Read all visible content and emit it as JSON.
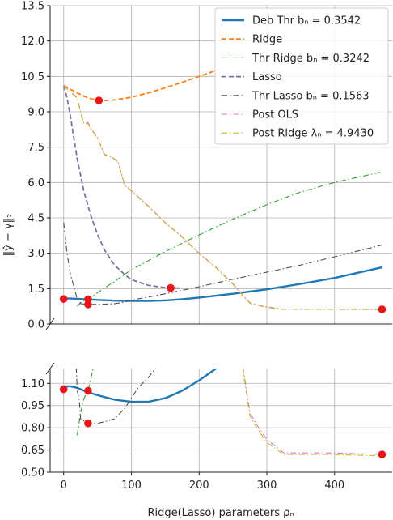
{
  "chart_data": {
    "type": "line",
    "xlabel": "Ridge(Lasso) parameters ρₙ",
    "ylabel": "‖ŷ − γ‖₂",
    "grid": true,
    "legend_position": "top-right",
    "xlim": [
      -20,
      485
    ],
    "x_ticks": [
      "0",
      "100",
      "200",
      "300",
      "400"
    ],
    "panels": [
      {
        "name": "top",
        "ylim": [
          0,
          13.5
        ],
        "y_ticks": [
          "0.0",
          "1.5",
          "3.0",
          "4.5",
          "6.0",
          "7.5",
          "9.0",
          "10.5",
          "12.0",
          "13.5"
        ]
      },
      {
        "name": "bottom",
        "ylim": [
          0.5,
          1.2
        ],
        "y_ticks": [
          "0.50",
          "0.65",
          "0.80",
          "0.95",
          "1.10"
        ]
      }
    ],
    "series": [
      {
        "name": "Deb Thr bₙ = 0.3542",
        "style": "solid",
        "color": "#1f77b4",
        "width": 2.4,
        "x": [
          0,
          10,
          20,
          30,
          36,
          50,
          75,
          100,
          125,
          150,
          175,
          200,
          250,
          300,
          350,
          400,
          470
        ],
        "y": [
          1.08,
          1.08,
          1.07,
          1.05,
          1.04,
          1.02,
          0.99,
          0.975,
          0.975,
          1.0,
          1.05,
          1.12,
          1.28,
          1.47,
          1.7,
          1.95,
          2.4
        ]
      },
      {
        "name": "Ridge",
        "style": "dashed",
        "color": "#ff7f0e",
        "width": 1.8,
        "x": [
          0,
          10,
          20,
          30,
          40,
          52,
          60,
          75,
          100,
          125,
          150,
          175,
          200,
          230
        ],
        "y": [
          10.12,
          9.95,
          9.8,
          9.66,
          9.55,
          9.48,
          9.47,
          9.5,
          9.62,
          9.8,
          10.02,
          10.25,
          10.5,
          10.8
        ]
      },
      {
        "name": "Thr Ridge bₙ = 0.3242",
        "style": "dashdot",
        "color": "#2ca02c",
        "width": 1.1,
        "x": [
          20,
          25,
          30,
          36,
          50,
          75,
          100,
          150,
          200,
          250,
          300,
          350,
          400,
          470
        ],
        "y": [
          0.75,
          0.9,
          1.0,
          1.05,
          1.33,
          1.8,
          2.3,
          3.07,
          3.78,
          4.45,
          5.06,
          5.6,
          6.0,
          6.45
        ]
      },
      {
        "name": "Lasso",
        "style": "dashed",
        "color": "#7f70a0",
        "width": 1.8,
        "x": [
          0,
          5,
          10,
          20,
          30,
          40,
          50,
          60,
          75,
          90,
          100,
          125,
          150,
          158,
          175
        ],
        "y": [
          10.1,
          9.6,
          8.8,
          7.0,
          5.6,
          4.6,
          3.8,
          3.15,
          2.5,
          2.1,
          1.88,
          1.64,
          1.54,
          1.53,
          1.52
        ]
      },
      {
        "name": "Thr Lasso bₙ = 0.1563",
        "style": "dashdot",
        "color": "#5b4a50",
        "width": 1.1,
        "x": [
          0,
          5,
          10,
          15,
          20,
          23,
          25,
          36,
          50,
          60,
          75,
          90,
          100,
          110,
          125,
          150,
          200,
          250,
          300,
          350,
          400,
          470
        ],
        "y": [
          4.3,
          3.0,
          2.1,
          1.6,
          1.05,
          0.99,
          0.86,
          0.83,
          0.83,
          0.84,
          0.86,
          0.93,
          1.0,
          1.07,
          1.14,
          1.28,
          1.58,
          1.9,
          2.2,
          2.5,
          2.85,
          3.35
        ]
      },
      {
        "name": "Post OLS",
        "style": "dashdot",
        "color": "#e377c2",
        "width": 1.1,
        "x": [
          0,
          10,
          20,
          25,
          30,
          36,
          40,
          50,
          60,
          70,
          80,
          90,
          100,
          125,
          150,
          175,
          200,
          225,
          250,
          265,
          275,
          285,
          300,
          325,
          350,
          400,
          470
        ],
        "y": [
          10.12,
          9.85,
          9.6,
          9.0,
          8.5,
          8.55,
          8.3,
          7.9,
          7.2,
          7.1,
          6.9,
          5.9,
          5.65,
          5.0,
          4.3,
          3.7,
          3.0,
          2.4,
          1.7,
          1.2,
          0.9,
          0.82,
          0.72,
          0.63,
          0.63,
          0.63,
          0.62
        ]
      },
      {
        "name": "Post Ridge λₙ = 4.9430",
        "style": "dashdot",
        "color": "#bcbd22",
        "width": 1.1,
        "x": [
          0,
          10,
          20,
          25,
          30,
          36,
          40,
          50,
          60,
          70,
          80,
          90,
          100,
          125,
          150,
          175,
          200,
          225,
          250,
          265,
          275,
          285,
          300,
          325,
          350,
          400,
          470
        ],
        "y": [
          10.1,
          9.83,
          9.58,
          8.98,
          8.48,
          8.5,
          8.28,
          7.88,
          7.18,
          7.08,
          6.88,
          5.88,
          5.63,
          4.98,
          4.28,
          3.68,
          2.98,
          2.38,
          1.68,
          1.18,
          0.88,
          0.8,
          0.7,
          0.62,
          0.62,
          0.62,
          0.61
        ]
      }
    ],
    "markers": {
      "color": "#e8151b",
      "points": [
        {
          "x": 0,
          "y": 1.06
        },
        {
          "x": 36,
          "y": 1.05
        },
        {
          "x": 36,
          "y": 0.83
        },
        {
          "x": 52,
          "y": 9.48
        },
        {
          "x": 158,
          "y": 1.53
        },
        {
          "x": 470,
          "y": 0.62
        }
      ]
    }
  }
}
